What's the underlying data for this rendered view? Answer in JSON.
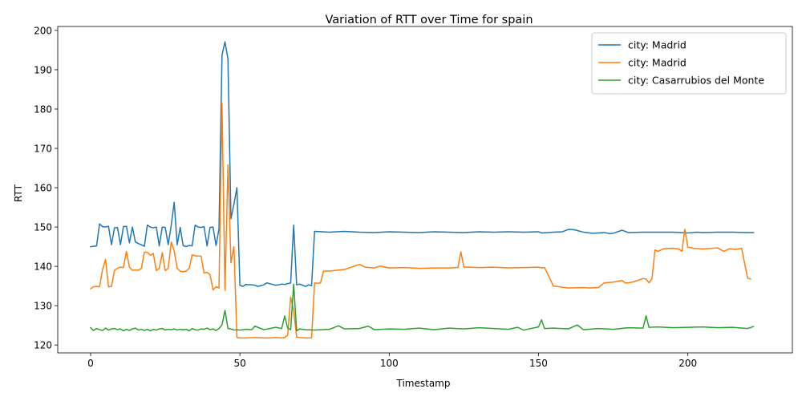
{
  "chart_data": {
    "type": "line",
    "title": "Variation of RTT over Time for spain",
    "xlabel": "Timestamp",
    "ylabel": "RTT",
    "xlim": [
      -11,
      235
    ],
    "ylim": [
      118,
      201
    ],
    "xticks": [
      0,
      50,
      100,
      150,
      200
    ],
    "yticks": [
      120,
      130,
      140,
      150,
      160,
      170,
      180,
      190,
      200
    ],
    "grid": false,
    "legend_position": "top-right",
    "series": [
      {
        "name": "city: Madrid",
        "color": "#1f77b4",
        "x": [
          0,
          1,
          2,
          3,
          4,
          5,
          6,
          7,
          8,
          9,
          10,
          11,
          12,
          13,
          14,
          15,
          16,
          17,
          18,
          19,
          20,
          21,
          22,
          23,
          24,
          25,
          26,
          27,
          28,
          29,
          30,
          31,
          32,
          33,
          34,
          35,
          36,
          37,
          38,
          39,
          40,
          41,
          42,
          43,
          44,
          45,
          46,
          47,
          48,
          49,
          50,
          51,
          52,
          53,
          54,
          55,
          56,
          57,
          58,
          59,
          60,
          61,
          62,
          63,
          64,
          65,
          66,
          67,
          68,
          69,
          70,
          71,
          72,
          73,
          74,
          75,
          80,
          85,
          90,
          95,
          100,
          105,
          110,
          115,
          120,
          125,
          130,
          135,
          140,
          145,
          150,
          151,
          155,
          158,
          160,
          162,
          165,
          168,
          170,
          172,
          174,
          175,
          178,
          180,
          185,
          190,
          195,
          198,
          200,
          203,
          205,
          210,
          215,
          220,
          222
        ],
        "y": [
          145,
          145.1,
          145.2,
          150.8,
          150.1,
          150,
          150.2,
          145.5,
          149.8,
          149.9,
          145.5,
          150.1,
          150.2,
          146,
          150,
          146.2,
          145.8,
          145.5,
          145.1,
          150.5,
          150,
          149.8,
          150,
          145.2,
          150,
          149.9,
          145.5,
          150.5,
          156.3,
          145.5,
          149.9,
          145.3,
          145,
          145.3,
          145.2,
          150.5,
          150,
          149.9,
          150.1,
          145.2,
          149.9,
          150,
          145.3,
          149.5,
          193.7,
          197.1,
          192.7,
          152.1,
          155.8,
          160,
          135.2,
          134.9,
          135.4,
          135.3,
          135.3,
          135.2,
          134.9,
          135.1,
          135.3,
          135.8,
          135.6,
          135.4,
          135.2,
          135.3,
          135.5,
          135.4,
          135.6,
          135.8,
          150.5,
          135.3,
          135.5,
          135.2,
          134.9,
          135.3,
          135.1,
          148.9,
          148.7,
          148.9,
          148.7,
          148.6,
          148.8,
          148.7,
          148.6,
          148.8,
          148.7,
          148.6,
          148.8,
          148.7,
          148.8,
          148.7,
          148.8,
          148.5,
          148.7,
          148.8,
          149.4,
          149.3,
          148.7,
          148.4,
          148.5,
          148.6,
          148.3,
          148.4,
          149.2,
          148.6,
          148.7,
          148.7,
          148.7,
          148.6,
          148.5,
          148.7,
          148.6,
          148.7,
          148.7,
          148.6,
          148.6
        ]
      },
      {
        "name": "city: Madrid",
        "color": "#ff7f0e",
        "x": [
          0,
          1,
          2,
          3,
          4,
          5,
          6,
          7,
          8,
          9,
          10,
          11,
          12,
          13,
          14,
          15,
          16,
          17,
          18,
          19,
          20,
          21,
          22,
          23,
          24,
          25,
          26,
          27,
          28,
          29,
          30,
          31,
          32,
          33,
          34,
          35,
          36,
          37,
          38,
          39,
          40,
          41,
          42,
          43,
          44,
          45,
          46,
          47,
          48,
          49,
          50,
          52,
          55,
          58,
          60,
          62,
          64,
          65,
          66,
          67,
          68,
          69,
          70,
          72,
          73,
          74,
          75,
          76,
          77,
          78,
          80,
          85,
          90,
          92,
          95,
          97,
          100,
          105,
          110,
          115,
          120,
          123,
          124,
          125,
          127,
          130,
          135,
          140,
          145,
          150,
          151,
          152,
          155,
          160,
          165,
          167,
          170,
          172,
          175,
          178,
          179,
          180,
          182,
          185,
          186,
          187,
          188,
          189,
          190,
          192,
          195,
          197,
          198,
          199,
          200,
          202,
          205,
          210,
          212,
          214,
          216,
          218,
          220,
          221
        ],
        "y": [
          134.3,
          134.8,
          134.9,
          134.8,
          139.2,
          141.8,
          134.8,
          134.9,
          139,
          139.5,
          139.8,
          139.7,
          143.8,
          139.8,
          139,
          139.1,
          139,
          139.5,
          143.6,
          143.6,
          142.8,
          143.3,
          138.9,
          139.5,
          143.5,
          138.9,
          139.5,
          146.2,
          143.9,
          139.5,
          138.8,
          138.6,
          138.8,
          139.5,
          142.9,
          142.7,
          142.6,
          142.6,
          138.3,
          138.5,
          137.9,
          134,
          134.8,
          134.5,
          181.4,
          133.9,
          165.8,
          140.9,
          145,
          121.9,
          121.8,
          121.8,
          121.9,
          121.8,
          121.8,
          121.9,
          121.8,
          121.9,
          122.5,
          132.2,
          128.8,
          122,
          121.9,
          121.8,
          121.8,
          121.8,
          135.8,
          135.7,
          135.8,
          138.8,
          138.8,
          139.2,
          140.5,
          139.8,
          139.6,
          140.1,
          139.6,
          139.7,
          139.5,
          139.6,
          139.6,
          139.7,
          143.7,
          139.8,
          139.8,
          139.7,
          139.8,
          139.6,
          139.7,
          139.8,
          139.6,
          139.7,
          135,
          134.5,
          134.6,
          134.5,
          134.6,
          135.8,
          136,
          136.4,
          135.8,
          135.8,
          136.1,
          136.9,
          136.8,
          135.8,
          136.9,
          144.2,
          143.8,
          144.5,
          144.6,
          144.4,
          143.8,
          149.4,
          144.9,
          144.6,
          144.4,
          144.7,
          143.8,
          144.5,
          144.3,
          144.6,
          137,
          136.8
        ]
      },
      {
        "name": "city: Casarrubios del Monte",
        "color": "#2ca02c",
        "x": [
          0,
          1,
          2,
          3,
          4,
          5,
          6,
          7,
          8,
          9,
          10,
          11,
          12,
          13,
          14,
          15,
          16,
          17,
          18,
          19,
          20,
          21,
          22,
          23,
          24,
          25,
          26,
          27,
          28,
          29,
          30,
          31,
          32,
          33,
          34,
          35,
          36,
          37,
          38,
          39,
          40,
          41,
          42,
          43,
          44,
          45,
          46,
          47,
          48,
          49,
          50,
          52,
          54,
          55,
          56,
          58,
          60,
          62,
          64,
          65,
          66,
          67,
          68,
          69,
          70,
          72,
          75,
          80,
          83,
          85,
          90,
          93,
          95,
          100,
          105,
          110,
          115,
          120,
          125,
          130,
          135,
          140,
          143,
          145,
          150,
          151,
          152,
          155,
          160,
          163,
          165,
          170,
          175,
          180,
          185,
          186,
          187,
          190,
          195,
          200,
          205,
          210,
          215,
          220,
          222
        ],
        "y": [
          124.4,
          123.7,
          124.2,
          123.9,
          123.7,
          124.3,
          123.8,
          124.1,
          124.2,
          123.9,
          124.1,
          123.6,
          124,
          123.7,
          124.1,
          124.3,
          123.8,
          124,
          123.7,
          124,
          123.6,
          124,
          123.8,
          124.1,
          124.2,
          123.8,
          124,
          123.9,
          124.1,
          123.8,
          124,
          123.9,
          124,
          123.6,
          124.2,
          123.9,
          123.8,
          124.1,
          124,
          124.3,
          123.9,
          124.1,
          123.7,
          124.2,
          125.1,
          128.8,
          124.2,
          124.1,
          123.8,
          123.9,
          123.8,
          124,
          123.9,
          124.8,
          124.5,
          123.9,
          124.2,
          124.5,
          124.2,
          127.4,
          124.3,
          123.9,
          135.5,
          123.6,
          124.1,
          123.9,
          123.8,
          124,
          124.9,
          124.1,
          124.2,
          124.8,
          123.9,
          124.1,
          124,
          124.3,
          123.9,
          124.3,
          124.1,
          124.4,
          124.2,
          124,
          124.5,
          123.8,
          124.6,
          126.4,
          124.2,
          124.3,
          124.1,
          125.1,
          123.9,
          124.2,
          124,
          124.4,
          124.3,
          127.4,
          124.5,
          124.6,
          124.4,
          124.5,
          124.6,
          124.4,
          124.5,
          124.2,
          124.7
        ]
      }
    ]
  }
}
